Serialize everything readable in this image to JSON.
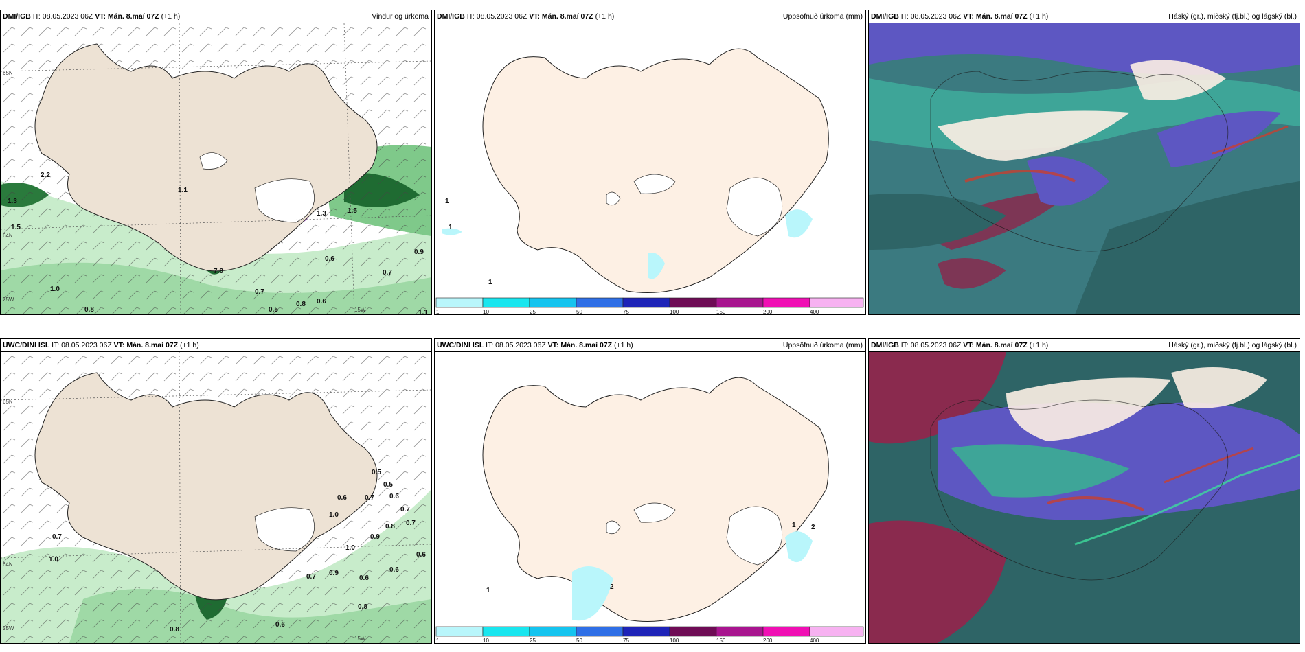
{
  "panels": [
    {
      "id": "p1",
      "source": "DMI/IGB",
      "it": "IT: 08.05.2023 06Z",
      "vt": "VT: Mán. 8.maí 07Z",
      "lead": "(+1 h)",
      "title": "Vindur og úrkoma"
    },
    {
      "id": "p2",
      "source": "DMI/IGB",
      "it": "IT: 08.05.2023 06Z",
      "vt": "VT: Mán. 8.maí 07Z",
      "lead": "(+1 h)",
      "title": "Uppsöfnuð úrkoma (mm)"
    },
    {
      "id": "p3",
      "source": "DMI/IGB",
      "it": "IT: 08.05.2023 06Z",
      "vt": "VT: Mán. 8.maí 07Z",
      "lead": "(+1 h)",
      "title": "Háský (gr.), miðský (fj.bl.) og lágský (bl.)"
    },
    {
      "id": "p4",
      "source": "UWC/DINI ISL",
      "it": "IT: 08.05.2023 06Z",
      "vt": "VT: Mán. 8.maí 07Z",
      "lead": "(+1 h)",
      "title": ""
    },
    {
      "id": "p5",
      "source": "UWC/DINI ISL",
      "it": "IT: 08.05.2023 06Z",
      "vt": "VT: Mán. 8.maí 07Z",
      "lead": "(+1 h)",
      "title": "Uppsöfnuð úrkoma (mm)"
    },
    {
      "id": "p6",
      "source": "DMI/IGB",
      "it": "IT: 08.05.2023 06Z",
      "vt": "VT: Mán. 8.maí 07Z",
      "lead": "(+1 h)",
      "title": "Háský (gr.), miðský (fj.bl.) og lágský (bl.)"
    }
  ],
  "grid_labels": {
    "lat_65": "65N",
    "lat_64": "64N",
    "lon_25": "25W",
    "lon_15": "15W"
  },
  "colorbar": {
    "colors": [
      "#b9f6fb",
      "#19e6ef",
      "#15c4ef",
      "#2f6fe6",
      "#1e24b8",
      "#6e0c55",
      "#a8158f",
      "#f00fb4",
      "#f7b2f1"
    ],
    "ticks": [
      "1",
      "10",
      "25",
      "50",
      "75",
      "100",
      "150",
      "200",
      "400"
    ]
  },
  "wind_rain_labels_top": [
    "2.2",
    "1.1",
    "1.3",
    "1.5",
    "1.3",
    "1.5",
    "0.6",
    "0.9",
    "0.7",
    "1.0",
    "0.7",
    "0.8",
    "0.6",
    "0.5",
    "0.8",
    "7.8",
    "1.1"
  ],
  "wind_rain_labels_bottom": [
    "0.5",
    "0.6",
    "0.7",
    "0.6",
    "0.7",
    "0.8",
    "0.9",
    "1.0",
    "0.7",
    "0.6",
    "0.5",
    "0.6",
    "0.7",
    "0.6",
    "0.8",
    "0.9",
    "1.0",
    "0.7",
    "1.0",
    "0.8",
    "0.6"
  ],
  "precip_labels_top": [
    "1",
    "1",
    "1"
  ],
  "precip_labels_bottom": [
    "1",
    "2",
    "1",
    "2"
  ],
  "colors": {
    "land": "#ede2d4",
    "precip_land": "#fdf0e4",
    "ocean": "#ffffff",
    "green_light": "#c8eccb",
    "green_mid": "#7fc98a",
    "green_dark": "#1f6b32",
    "magenta": "#c060c8"
  }
}
